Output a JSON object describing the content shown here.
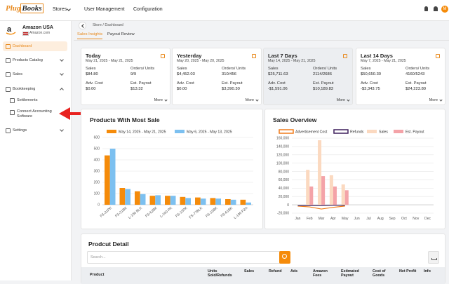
{
  "nav": {
    "brand": [
      "Plug",
      "Books"
    ],
    "items": [
      "Stores",
      "User Management",
      "Configuration"
    ],
    "avatar": "M"
  },
  "sidebar": {
    "store": "Amazon USA",
    "marketplace": "Amazon.com",
    "menu": [
      "Dashboard",
      "Products Catalog",
      "Sales",
      "Bookkeeping",
      "Settlements",
      "Connect Accounting Software",
      "Settings"
    ]
  },
  "breadcrumb": "Store / Dashboard",
  "tabs": [
    "Sales Insights",
    "Payout Review"
  ],
  "cards": [
    {
      "title": "Today",
      "dates": "May 21, 2025 - May 21, 2025",
      "fields": [
        {
          "label": "Sales",
          "value": "$84.80"
        },
        {
          "label": "Orders/ Units",
          "value": "9/9"
        },
        {
          "label": "Adv. Cost",
          "value": "$0.00"
        },
        {
          "label": "Est. Payout",
          "value": "$13.32"
        }
      ],
      "more": "More"
    },
    {
      "title": "Yesterday",
      "dates": "May 20, 2025 - May 20, 2025",
      "fields": [
        {
          "label": "Sales",
          "value": "$4,452.03"
        },
        {
          "label": "Orders/ Units",
          "value": "310/456"
        },
        {
          "label": "Adv. Cost",
          "value": "$0.00"
        },
        {
          "label": "Est. Payout",
          "value": "$3,390.30"
        }
      ],
      "more": "More"
    },
    {
      "title": "Last 7 Days",
      "dates": "May 14, 2025 - May 21, 2025",
      "fields": [
        {
          "label": "Sales",
          "value": "$25,711.63"
        },
        {
          "label": "Orders/ Units",
          "value": "2114/2686"
        },
        {
          "label": "Adv. Cost",
          "value": "-$1,591.06"
        },
        {
          "label": "Est. Payout",
          "value": "$10,189.83"
        }
      ],
      "more": "More"
    },
    {
      "title": "Last 14 Days",
      "dates": "May 7, 2025 - May 21, 2025",
      "fields": [
        {
          "label": "Sales",
          "value": "$50,650.30"
        },
        {
          "label": "Orders/ Units",
          "value": "4160/5243"
        },
        {
          "label": "Adv. Cost",
          "value": "-$3,343.75"
        },
        {
          "label": "Est. Payout",
          "value": "$24,223.80"
        }
      ],
      "more": "More"
    }
  ],
  "chart_data": [
    {
      "type": "bar",
      "title": "Products With Most Sale",
      "categories": [
        "FS-31PK",
        "FS-21BK",
        "L-100 BLK",
        "FS-62BK",
        "L-100 PK",
        "FS-10PK",
        "FS-77BLK",
        "FS-10BK",
        "FS-61BK",
        "L-100 PZA"
      ],
      "series": [
        {
          "name": "May 14, 2025 - May 21, 2025",
          "color": "#f58b0a",
          "values": [
            440,
            150,
            120,
            80,
            80,
            70,
            65,
            60,
            50,
            45
          ]
        },
        {
          "name": "May 6, 2025 - May 13, 2025",
          "color": "#7cc0f0",
          "values": [
            500,
            140,
            95,
            85,
            80,
            60,
            55,
            55,
            45,
            20
          ]
        }
      ],
      "ylim": [
        0,
        600
      ],
      "yticks": [
        0,
        100,
        200,
        300,
        400,
        500,
        600
      ],
      "grid": true
    },
    {
      "type": "bar",
      "title": "Sales Overview",
      "categories": [
        "Jan",
        "Feb",
        "Mar",
        "Apr",
        "May",
        "Jun",
        "Jul",
        "Aug",
        "Sep",
        "Oct",
        "Nov",
        "Dec"
      ],
      "series": [
        {
          "name": "Advertisement Cost",
          "type": "line",
          "color": "#f07c1b",
          "values": [
            -3000,
            -5000,
            -10000,
            -6000,
            -3000,
            null,
            null,
            null,
            null,
            null,
            null,
            null
          ]
        },
        {
          "name": "Refunds",
          "type": "line",
          "color": "#3d1f5c",
          "values": [
            -2000,
            -2000,
            -2000,
            -1000,
            -1000,
            null,
            null,
            null,
            null,
            null,
            null,
            null
          ]
        },
        {
          "name": "Sales",
          "type": "bar",
          "color": "#fbd9c0",
          "values": [
            0,
            84000,
            155000,
            71000,
            49000,
            0,
            0,
            0,
            0,
            0,
            0,
            0
          ]
        },
        {
          "name": "Est. Payout",
          "type": "bar",
          "color": "#f4a3a8",
          "values": [
            0,
            44000,
            69000,
            44000,
            35000,
            0,
            0,
            0,
            0,
            0,
            0,
            0
          ]
        }
      ],
      "ylim": [
        -20000,
        160000
      ],
      "yticks": [
        {
          "value": -20000,
          "label": "-20,000"
        },
        0,
        {
          "value": 20000,
          "label": "20,000"
        },
        {
          "value": 40000,
          "label": "40,000"
        },
        {
          "value": 60000,
          "label": "60,000"
        },
        {
          "value": 80000,
          "label": "80,000"
        },
        {
          "value": 100000,
          "label": "100,000"
        },
        {
          "value": 120000,
          "label": "120,000"
        },
        {
          "value": 140000,
          "label": "140,000"
        },
        {
          "value": 160000,
          "label": "160,000"
        }
      ],
      "grid": true
    }
  ],
  "table": {
    "title": "Prodcut Detail",
    "search": "Search...",
    "columns": [
      "Product",
      "Units Sold/Refunds",
      "Sales",
      "Refund",
      "Ads",
      "Amazon Fees",
      "Estimated Payout",
      "Cost of Goods",
      "Net Profit",
      "Info"
    ]
  }
}
